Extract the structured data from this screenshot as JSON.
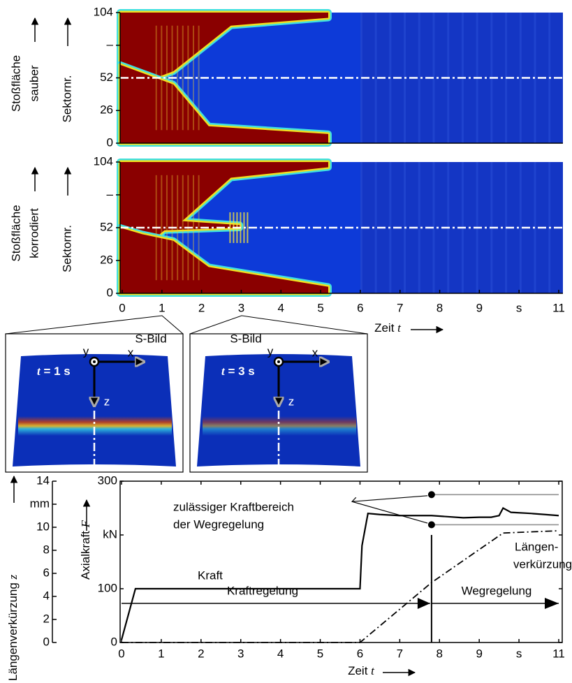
{
  "chart_data": [
    {
      "type": "heatmap",
      "row_label": [
        "Stoßfläche",
        "sauber"
      ],
      "ylabel": "Sektornr.",
      "xlim": [
        0,
        11
      ],
      "ylim": [
        0,
        104
      ],
      "yticks": [
        0,
        26,
        52,
        {
          "value": 78,
          "label": "–"
        },
        104
      ],
      "reference_line": 52
    },
    {
      "type": "heatmap",
      "row_label": [
        "Stoßfläche",
        "korrodiert"
      ],
      "ylabel": "Sektornr.",
      "xlim": [
        0,
        11
      ],
      "ylim": [
        0,
        104
      ],
      "yticks": [
        0,
        26,
        52,
        {
          "value": 78,
          "label": "–"
        },
        104
      ],
      "reference_line": 52,
      "xticks": [
        0,
        1,
        2,
        3,
        4,
        5,
        6,
        7,
        8,
        9,
        {
          "value": 10,
          "label": "s"
        },
        11
      ],
      "xlabel": [
        "Zeit",
        "t"
      ]
    },
    {
      "type": "line",
      "xlim": [
        0,
        11
      ],
      "xticks": [
        0,
        1,
        2,
        3,
        4,
        5,
        6,
        7,
        8,
        9,
        {
          "value": 10,
          "label": "s"
        },
        11
      ],
      "xlabel": [
        "Zeit",
        "t"
      ],
      "ylim": [
        0,
        300
      ],
      "yticks": [
        0,
        100,
        {
          "value": 200,
          "label": "kN"
        },
        300
      ],
      "ylabel": [
        "Axialkraft",
        "F"
      ],
      "y2lim": [
        0,
        14
      ],
      "y2ticks": [
        0,
        2,
        4,
        6,
        8,
        10,
        {
          "value": 12,
          "label": "mm"
        },
        14
      ],
      "y2label": [
        "Längenverkürzung",
        "z"
      ],
      "switch_time": 7.8,
      "series": [
        {
          "color": "#000000",
          "style": "solid",
          "x": [
            0,
            0.35,
            0.4,
            6.0,
            6.05,
            6.2,
            6.5,
            7.0,
            7.8,
            8.2,
            8.6,
            9.0,
            9.3,
            9.5,
            9.6,
            9.8,
            10.3,
            11
          ],
          "values": [
            5,
            100,
            100,
            100,
            180,
            240,
            238,
            236,
            236,
            234,
            232,
            233,
            233,
            236,
            250,
            242,
            240,
            236
          ]
        },
        {
          "color": "#000000",
          "style": "dashdot",
          "axis": "y2",
          "x": [
            0,
            6.0,
            7.8,
            9.6,
            11
          ],
          "values": [
            0,
            0,
            5.2,
            9.5,
            9.7
          ]
        },
        {
          "color": "#999999",
          "style": "solid",
          "marker_start": true,
          "x": [
            7.8,
            11
          ],
          "values": [
            275,
            275
          ]
        },
        {
          "color": "#999999",
          "style": "solid",
          "marker_start": true,
          "x": [
            7.8,
            11
          ],
          "values": [
            219,
            219
          ]
        }
      ],
      "annotations": {
        "range": [
          "zulässiger Kraftbereich",
          "der Wegregelung"
        ],
        "force": "Kraft",
        "shortening": [
          "Längen-",
          "verkürzung"
        ],
        "force_control": "Kraftregelung",
        "displacement_control": "Wegregelung"
      }
    }
  ],
  "insets": [
    {
      "title": "S-Bild",
      "time": [
        "t",
        "= 1 s"
      ],
      "axes": [
        "y",
        "x",
        "z"
      ]
    },
    {
      "title": "S-Bild",
      "time": [
        "t",
        "= 3 s"
      ],
      "axes": [
        "y",
        "x",
        "z"
      ]
    }
  ]
}
